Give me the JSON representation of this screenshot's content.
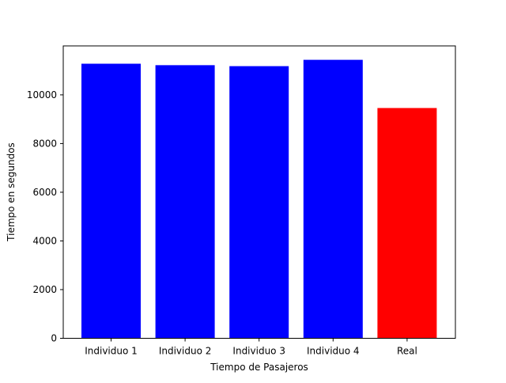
{
  "chart_data": {
    "type": "bar",
    "categories": [
      "Individuo 1",
      "Individuo 2",
      "Individuo 3",
      "Individuo 4",
      "Real"
    ],
    "values": [
      11280,
      11220,
      11180,
      11440,
      9460
    ],
    "bar_colors": [
      "#0000ff",
      "#0000ff",
      "#0000ff",
      "#0000ff",
      "#ff0000"
    ],
    "xlabel": "Tiempo de Pasajeros",
    "ylabel": "Tiempo en segundos",
    "ylim": [
      0,
      12012
    ],
    "yticks": [
      0,
      2000,
      4000,
      6000,
      8000,
      10000
    ],
    "ytick_labels": [
      "0",
      "2000",
      "4000",
      "6000",
      "8000",
      "10000"
    ],
    "grid": false,
    "legend": "none"
  }
}
